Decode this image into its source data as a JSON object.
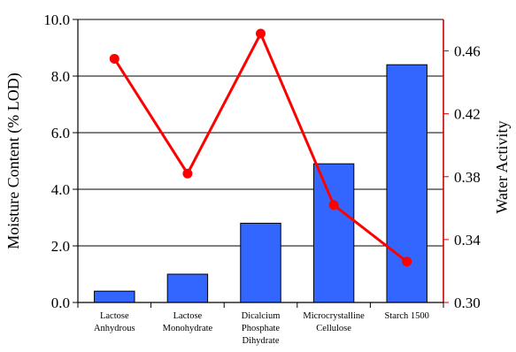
{
  "chart_data": {
    "type": "bar",
    "categories": [
      [
        "Lactose",
        "Anhydrous"
      ],
      [
        "Lactose",
        "Monohydrate"
      ],
      [
        "Dicalcium",
        "Phosphate",
        "Dihydrate"
      ],
      [
        "Microcrystalline",
        "Cellulose"
      ],
      [
        "Starch 1500"
      ]
    ],
    "ylabel": "Moisture Content (% LOD)",
    "y2label": "Water Activity",
    "ylim": [
      0,
      10
    ],
    "y2lim": [
      0.3,
      0.48
    ],
    "yticks": [
      "0.0",
      "2.0",
      "4.0",
      "6.0",
      "8.0",
      "10.0"
    ],
    "y2ticks": [
      "0.30",
      "0.34",
      "0.38",
      "0.42",
      "0.46"
    ],
    "grid": true,
    "series": [
      {
        "type": "bar",
        "axis": "left",
        "values": [
          0.4,
          1.0,
          2.8,
          4.9,
          8.4
        ]
      },
      {
        "type": "line",
        "axis": "right",
        "values": [
          0.455,
          0.382,
          0.471,
          0.362,
          0.326
        ]
      }
    ],
    "colors": {
      "bar": "#3366ff",
      "line": "#ff0000",
      "right_axis": "#cc0000",
      "grid": "#000000"
    }
  }
}
